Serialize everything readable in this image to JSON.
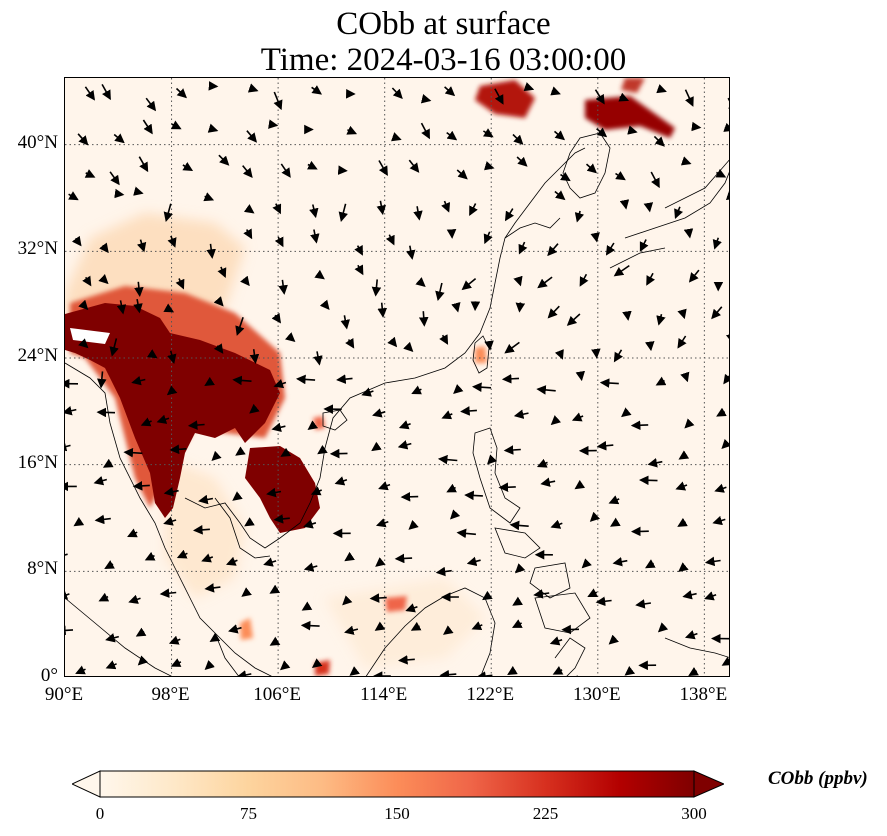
{
  "title": {
    "line1": "CObb at surface",
    "line2": "Time: 2024-03-16 03:00:00"
  },
  "map": {
    "extent": {
      "lon_min": 90,
      "lon_max": 140,
      "lat_min": 0,
      "lat_max": 45
    },
    "lat_ticks": [
      "0°",
      "8°N",
      "16°N",
      "24°N",
      "32°N",
      "40°N"
    ],
    "lon_ticks": [
      "90°E",
      "98°E",
      "106°E",
      "114°E",
      "122°E",
      "130°E",
      "138°E"
    ],
    "gridlines": "dotted",
    "background_color": "#fff5eb",
    "coastline_color": "#000000"
  },
  "colorbar": {
    "title": "CObb (ppbv)",
    "ticks": [
      "0",
      "75",
      "150",
      "225",
      "300"
    ],
    "min": 0,
    "max": 300,
    "extend": "both",
    "colormap": "OrRd",
    "colors": [
      "#fff7ec",
      "#fee8c8",
      "#fdd49e",
      "#fdbb84",
      "#fc8d59",
      "#ef6548",
      "#d7301f",
      "#b30000",
      "#7f0000"
    ]
  },
  "wind_vectors": "arrows"
}
